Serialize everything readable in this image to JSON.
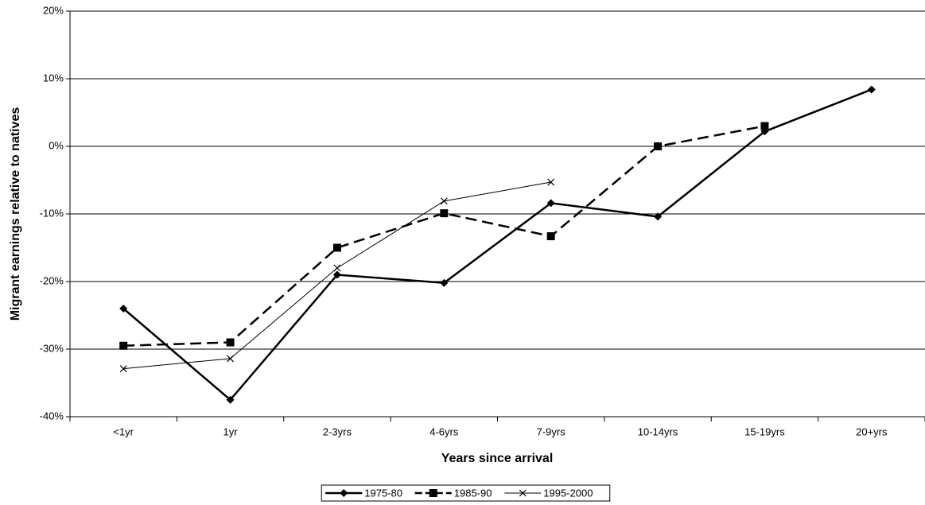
{
  "chart_data": {
    "type": "line",
    "x_label": "Years since arrival",
    "y_label": "Migrant earnings relative to natives",
    "categories": [
      "<1yr",
      "1yr",
      "2-3yrs",
      "4-6yrs",
      "7-9yrs",
      "10-14yrs",
      "15-19yrs",
      "20+yrs"
    ],
    "series": [
      {
        "name": "1975-80",
        "color": "#000000",
        "marker": "diamond",
        "line_style": "solid",
        "line_width": 2.5,
        "values": [
          -24,
          -37.5,
          -19,
          -20.2,
          -8.4,
          -10.4,
          2.2,
          8.4
        ]
      },
      {
        "name": "1985-90",
        "color": "#000000",
        "marker": "square",
        "line_style": "dashed",
        "line_width": 2.5,
        "values": [
          -29.5,
          -29,
          -15,
          -9.9,
          -13.3,
          0,
          3,
          null
        ]
      },
      {
        "name": "1995-2000",
        "color": "#000000",
        "marker": "cross",
        "line_style": "solid",
        "line_width": 1,
        "values": [
          -32.9,
          -31.4,
          -18,
          -8.1,
          -5.3,
          null,
          null,
          null
        ]
      }
    ],
    "ylim": [
      -40,
      20
    ],
    "yticks": [
      {
        "value": -40,
        "label": "-40%"
      },
      {
        "value": -30,
        "label": "-30%"
      },
      {
        "value": -20,
        "label": "-20%"
      },
      {
        "value": -10,
        "label": "-10%"
      },
      {
        "value": 0,
        "label": "0%"
      },
      {
        "value": 10,
        "label": "10%"
      },
      {
        "value": 20,
        "label": "20%"
      }
    ],
    "grid": true,
    "legend": "bottom"
  }
}
